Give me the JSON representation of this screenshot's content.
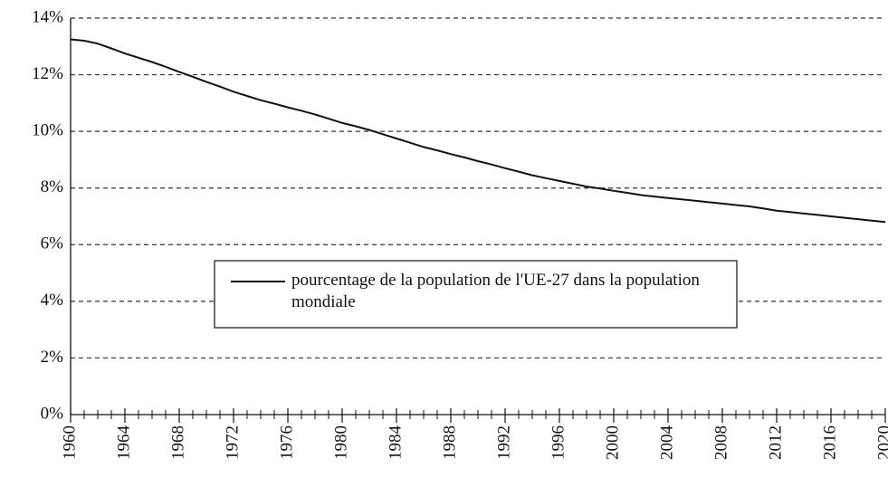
{
  "chart_data": {
    "type": "line",
    "x": [
      1960,
      1961,
      1962,
      1963,
      1964,
      1965,
      1966,
      1967,
      1968,
      1969,
      1970,
      1971,
      1972,
      1973,
      1974,
      1975,
      1976,
      1977,
      1978,
      1979,
      1980,
      1981,
      1982,
      1983,
      1984,
      1985,
      1986,
      1987,
      1988,
      1989,
      1990,
      1991,
      1992,
      1993,
      1994,
      1995,
      1996,
      1997,
      1998,
      1999,
      2000,
      2001,
      2002,
      2003,
      2004,
      2005,
      2006,
      2007,
      2008,
      2009,
      2010,
      2011,
      2012,
      2013,
      2014,
      2015,
      2016,
      2017,
      2018,
      2019,
      2020
    ],
    "series": [
      {
        "name": "pourcentage de la population de l'UE-27 dans la population mondiale",
        "color": "#111111",
        "values": [
          13.25,
          13.2,
          13.1,
          12.93,
          12.75,
          12.6,
          12.45,
          12.28,
          12.1,
          11.93,
          11.75,
          11.58,
          11.4,
          11.25,
          11.1,
          10.98,
          10.85,
          10.73,
          10.6,
          10.45,
          10.3,
          10.18,
          10.05,
          9.9,
          9.75,
          9.6,
          9.45,
          9.33,
          9.2,
          9.08,
          8.95,
          8.83,
          8.7,
          8.58,
          8.45,
          8.35,
          8.25,
          8.15,
          8.05,
          7.98,
          7.9,
          7.83,
          7.75,
          7.7,
          7.65,
          7.6,
          7.55,
          7.5,
          7.45,
          7.4,
          7.35,
          7.28,
          7.2,
          7.15,
          7.1,
          7.05,
          7.0,
          6.95,
          6.9,
          6.85,
          6.8
        ]
      }
    ],
    "xlim": [
      1960,
      2020
    ],
    "xticks": [
      1960,
      1964,
      1968,
      1972,
      1976,
      1980,
      1984,
      1988,
      1992,
      1996,
      2000,
      2004,
      2008,
      2012,
      2016,
      2020
    ],
    "ylim": [
      0,
      14
    ],
    "yticks": [
      {
        "value": 0,
        "label": "0%"
      },
      {
        "value": 2,
        "label": "2%"
      },
      {
        "value": 4,
        "label": "4%"
      },
      {
        "value": 6,
        "label": "6%"
      },
      {
        "value": 8,
        "label": "8%"
      },
      {
        "value": 10,
        "label": "10%"
      },
      {
        "value": 12,
        "label": "12%"
      },
      {
        "value": 14,
        "label": "14%"
      }
    ],
    "grid": true
  }
}
